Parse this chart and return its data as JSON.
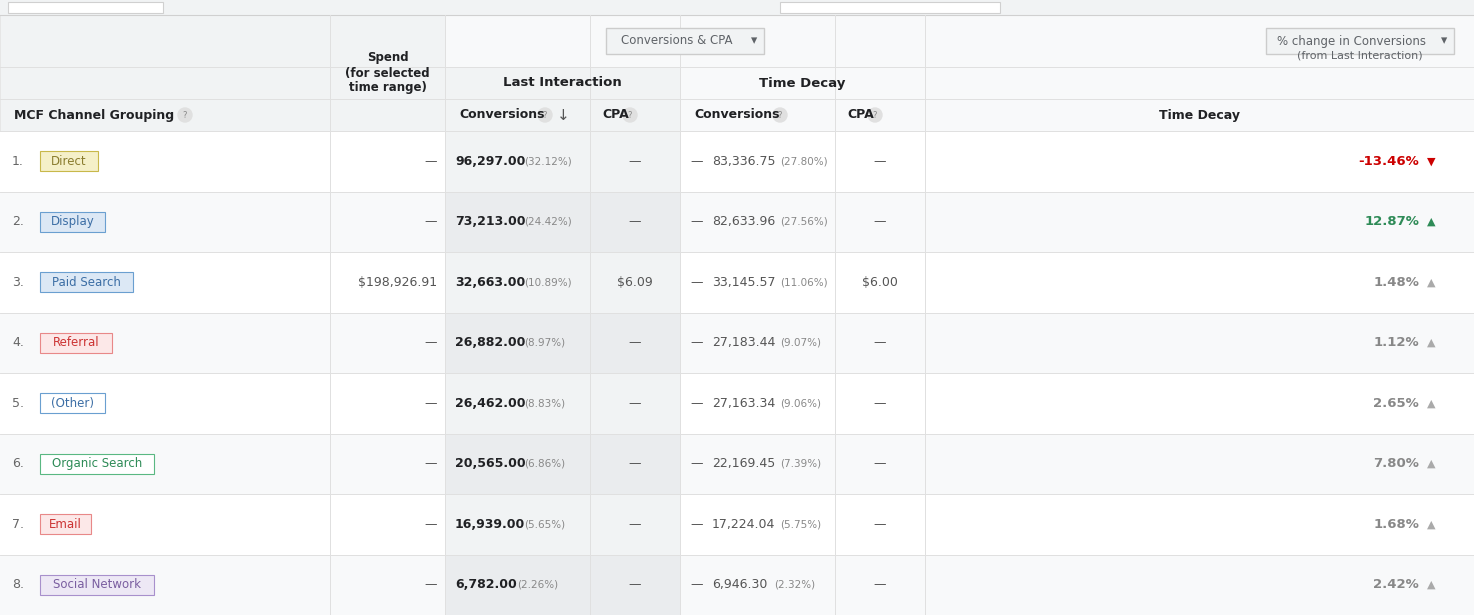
{
  "bg_color": "#ffffff",
  "top_header": {
    "conversions_cpa_btn": "Conversions & CPA",
    "pct_change_btn": "% change in Conversions",
    "from_label": "(from Last Interaction)"
  },
  "rows": [
    {
      "num": "1.",
      "channel": "Direct",
      "channel_color": "#8a7c2e",
      "channel_bg": "#f5f0c8",
      "channel_border": "#c8b84a",
      "spend": "—",
      "li_conv": "96,297.00",
      "li_conv_pct": "(32.12%)",
      "li_cpa": "—",
      "td_dash": "—",
      "td_conv": "83,336.75",
      "td_conv_pct": "(27.80%)",
      "td_cpa": "—",
      "pct_change": "-13.46%",
      "pct_change_color": "#cc0000",
      "arrow": "▼",
      "arrow_color": "#cc0000"
    },
    {
      "num": "2.",
      "channel": "Display",
      "channel_color": "#3c6ea5",
      "channel_bg": "#dce8f5",
      "channel_border": "#6a9fd0",
      "spend": "—",
      "li_conv": "73,213.00",
      "li_conv_pct": "(24.42%)",
      "li_cpa": "—",
      "td_dash": "—",
      "td_conv": "82,633.96",
      "td_conv_pct": "(27.56%)",
      "td_cpa": "—",
      "pct_change": "12.87%",
      "pct_change_color": "#2e8b57",
      "arrow": "▲",
      "arrow_color": "#2e8b57"
    },
    {
      "num": "3.",
      "channel": "Paid Search",
      "channel_color": "#3c6ea5",
      "channel_bg": "#dce8f5",
      "channel_border": "#6a9fd0",
      "spend": "$198,926.91",
      "li_conv": "32,663.00",
      "li_conv_pct": "(10.89%)",
      "li_cpa": "$6.09",
      "td_dash": "—",
      "td_conv": "33,145.57",
      "td_conv_pct": "(11.06%)",
      "td_cpa": "$6.00",
      "pct_change": "1.48%",
      "pct_change_color": "#888888",
      "arrow": "▲",
      "arrow_color": "#aaaaaa"
    },
    {
      "num": "4.",
      "channel": "Referral",
      "channel_color": "#cc3333",
      "channel_bg": "#fce8e8",
      "channel_border": "#e88888",
      "spend": "—",
      "li_conv": "26,882.00",
      "li_conv_pct": "(8.97%)",
      "li_cpa": "—",
      "td_dash": "—",
      "td_conv": "27,183.44",
      "td_conv_pct": "(9.07%)",
      "td_cpa": "—",
      "pct_change": "1.12%",
      "pct_change_color": "#888888",
      "arrow": "▲",
      "arrow_color": "#aaaaaa"
    },
    {
      "num": "5.",
      "channel": "(Other)",
      "channel_color": "#3c6ea5",
      "channel_bg": "#ffffff",
      "channel_border": "#6a9fd0",
      "spend": "—",
      "li_conv": "26,462.00",
      "li_conv_pct": "(8.83%)",
      "li_cpa": "—",
      "td_dash": "—",
      "td_conv": "27,163.34",
      "td_conv_pct": "(9.06%)",
      "td_cpa": "—",
      "pct_change": "2.65%",
      "pct_change_color": "#888888",
      "arrow": "▲",
      "arrow_color": "#aaaaaa"
    },
    {
      "num": "6.",
      "channel": "Organic Search",
      "channel_color": "#2e8b57",
      "channel_bg": "#ffffff",
      "channel_border": "#5ab882",
      "spend": "—",
      "li_conv": "20,565.00",
      "li_conv_pct": "(6.86%)",
      "li_cpa": "—",
      "td_dash": "—",
      "td_conv": "22,169.45",
      "td_conv_pct": "(7.39%)",
      "td_cpa": "—",
      "pct_change": "7.80%",
      "pct_change_color": "#888888",
      "arrow": "▲",
      "arrow_color": "#aaaaaa"
    },
    {
      "num": "7.",
      "channel": "Email",
      "channel_color": "#cc3333",
      "channel_bg": "#fce8e8",
      "channel_border": "#e88888",
      "spend": "—",
      "li_conv": "16,939.00",
      "li_conv_pct": "(5.65%)",
      "li_cpa": "—",
      "td_dash": "—",
      "td_conv": "17,224.04",
      "td_conv_pct": "(5.75%)",
      "td_cpa": "—",
      "pct_change": "1.68%",
      "pct_change_color": "#888888",
      "arrow": "▲",
      "arrow_color": "#aaaaaa"
    },
    {
      "num": "8.",
      "channel": "Social Network",
      "channel_color": "#7a5ea0",
      "channel_bg": "#ede8f5",
      "channel_border": "#a890cc",
      "spend": "—",
      "li_conv": "6,782.00",
      "li_conv_pct": "(2.26%)",
      "li_cpa": "—",
      "td_dash": "—",
      "td_conv": "6,946.30",
      "td_conv_pct": "(2.32%)",
      "td_cpa": "—",
      "pct_change": "2.42%",
      "pct_change_color": "#888888",
      "arrow": "▲",
      "arrow_color": "#aaaaaa"
    }
  ]
}
